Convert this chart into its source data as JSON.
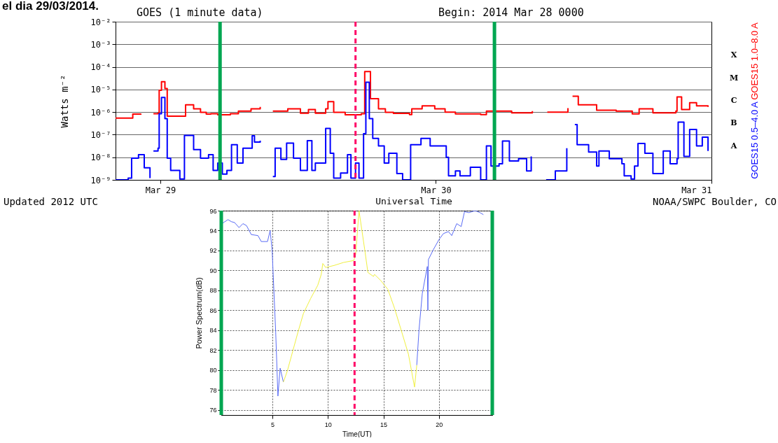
{
  "chart_data": [
    {
      "type": "step",
      "title": "GOES (1 minute data)",
      "subtitle": "Begin: 2014 Mar 28 0000",
      "xlabel": "Universal Time",
      "ylabel": "Watts m⁻²",
      "annotations": [
        "el dia 29/03/2014.",
        "Updated 2012 UTC",
        "NOAA/SWPC Boulder, CO",
        "X",
        "M",
        "C",
        "B",
        "A"
      ],
      "xlim": [
        "2014-03-28T20:06",
        "2014-03-31T00:00"
      ],
      "xticks": [
        {
          "value": "2014-03-29",
          "label": "Mar 29"
        },
        {
          "value": "2014-03-30",
          "label": "Mar 30"
        },
        {
          "value": "2014-03-31",
          "label": "Mar 31"
        }
      ],
      "ylim": [
        1e-09,
        0.01
      ],
      "yticks": [
        {
          "value": 1e-09,
          "label": "10⁻⁹"
        },
        {
          "value": 1e-08,
          "label": "10⁻⁸"
        },
        {
          "value": 1e-07,
          "label": "10⁻⁷"
        },
        {
          "value": 1e-06,
          "label": "10⁻⁶"
        },
        {
          "value": 1e-05,
          "label": "10⁻⁵"
        },
        {
          "value": 0.0001,
          "label": "10⁻⁴"
        },
        {
          "value": 0.001,
          "label": "10⁻³"
        },
        {
          "value": 0.01,
          "label": "10⁻²"
        }
      ],
      "log": true,
      "grid": "y",
      "legend": "right",
      "ref_lines": [
        {
          "axis": "x",
          "value": "2014-03-29T05:12",
          "color": "#00a651"
        },
        {
          "axis": "x",
          "value": "2014-03-30T05:06",
          "color": "#00a651"
        },
        {
          "axis": "x",
          "value": "2014-03-29T17:00",
          "color": "#ff0066",
          "line_style": "dashed"
        }
      ],
      "series": [
        {
          "name": "GOES15 1.0–8.0 A",
          "color": "#ff0000",
          "x": [
            "2014-03-28T20:06",
            "2014-03-28T21:36",
            "2014-03-28T22:18",
            "2014-03-28T22:42",
            "2014-03-28T23:24",
            "2014-03-28T23:48",
            "2014-03-28T23:54",
            "2014-03-29T00:06",
            "2014-03-29T00:24",
            "2014-03-29T00:36",
            "2014-03-29T02:06",
            "2014-03-29T02:12",
            "2014-03-29T02:54",
            "2014-03-29T03:30",
            "2014-03-29T04:00",
            "2014-03-29T04:24",
            "2014-03-29T05:00",
            "2014-03-29T06:06",
            "2014-03-29T06:48",
            "2014-03-29T07:54",
            "2014-03-29T08:42",
            "2014-03-29T09:12",
            "2014-03-29T09:48",
            "2014-03-29T11:06",
            "2014-03-29T12:12",
            "2014-03-29T12:54",
            "2014-03-29T13:30",
            "2014-03-29T14:24",
            "2014-03-29T14:36",
            "2014-03-29T15:06",
            "2014-03-29T16:06",
            "2014-03-29T17:30",
            "2014-03-29T17:48",
            "2014-03-29T18:00",
            "2014-03-29T18:18",
            "2014-03-29T19:00",
            "2014-03-29T19:36",
            "2014-03-29T20:18",
            "2014-03-29T21:42",
            "2014-03-29T21:54",
            "2014-03-29T22:48",
            "2014-03-29T23:54",
            "2014-03-30T00:48",
            "2014-03-30T01:42",
            "2014-03-30T03:54",
            "2014-03-30T04:24",
            "2014-03-30T05:42",
            "2014-03-30T06:36",
            "2014-03-30T08:24",
            "2014-03-30T09:00",
            "2014-03-30T09:42",
            "2014-03-30T11:30",
            "2014-03-30T11:42",
            "2014-03-30T11:54",
            "2014-03-30T12:24",
            "2014-03-30T14:00",
            "2014-03-30T15:42",
            "2014-03-30T17:06",
            "2014-03-30T17:42",
            "2014-03-30T18:54",
            "2014-03-30T20:54",
            "2014-03-30T21:00",
            "2014-03-30T21:24",
            "2014-03-30T22:06",
            "2014-03-30T22:42",
            "2014-03-30T23:42"
          ],
          "values": [
            5.4e-07,
            8.1e-07,
            7.6e-07,
            null,
            8.5e-07,
            8.9e-07,
            9.3e-06,
            2.2e-05,
            1.1e-05,
            6.6e-07,
            6.6e-07,
            2.1e-06,
            1.4e-06,
            9.8e-07,
            8.1e-07,
            8.5e-07,
            7.6e-07,
            8.5e-07,
            1.1e-06,
            1.4e-06,
            1.7e-06,
            null,
            1.1e-06,
            1.4e-06,
            8.9e-07,
            1.3e-06,
            8.9e-07,
            1.4e-06,
            2.9e-06,
            9.8e-07,
            7.6e-07,
            8.5e-07,
            6.2e-05,
            6.2e-05,
            3.9e-06,
            1.4e-06,
            9.8e-07,
            8.7e-07,
            7.8e-07,
            1.4e-06,
            1.9e-06,
            1.4e-06,
            1e-06,
            8.3e-07,
            7.8e-07,
            1.1e-06,
            1.1e-06,
            9.3e-07,
            1.1e-06,
            null,
            1e-06,
            1.5e-06,
            null,
            5e-06,
            2.1e-06,
            1.2e-06,
            1.1e-06,
            8.3e-07,
            1.4e-06,
            9.3e-07,
            1.1e-06,
            4.7e-06,
            1.3e-06,
            2.6e-06,
            1.9e-06,
            1.7e-06
          ]
        },
        {
          "name": "GOES15 0.5–4.0 A",
          "color": "#0000ff",
          "x": [
            "2014-03-28T20:06",
            "2014-03-28T21:12",
            "2014-03-28T21:30",
            "2014-03-28T22:06",
            "2014-03-28T22:36",
            "2014-03-28T23:06",
            "2014-03-28T23:15",
            "2014-03-28T23:24",
            "2014-03-28T23:48",
            "2014-03-28T23:54",
            "2014-03-29T00:06",
            "2014-03-29T00:24",
            "2014-03-29T00:36",
            "2014-03-29T00:54",
            "2014-03-29T01:42",
            "2014-03-29T02:06",
            "2014-03-29T02:54",
            "2014-03-29T03:30",
            "2014-03-29T04:12",
            "2014-03-29T04:36",
            "2014-03-29T05:00",
            "2014-03-29T05:24",
            "2014-03-29T05:48",
            "2014-03-29T06:12",
            "2014-03-29T06:42",
            "2014-03-29T07:12",
            "2014-03-29T08:00",
            "2014-03-29T08:12",
            "2014-03-29T08:42",
            "2014-03-29T09:12",
            "2014-03-29T09:48",
            "2014-03-29T10:00",
            "2014-03-29T10:30",
            "2014-03-29T11:00",
            "2014-03-29T11:36",
            "2014-03-29T12:12",
            "2014-03-29T12:48",
            "2014-03-29T13:12",
            "2014-03-29T13:30",
            "2014-03-29T14:24",
            "2014-03-29T14:48",
            "2014-03-29T15:06",
            "2014-03-29T15:42",
            "2014-03-29T16:18",
            "2014-03-29T16:36",
            "2014-03-29T17:00",
            "2014-03-29T17:18",
            "2014-03-29T17:42",
            "2014-03-29T17:54",
            "2014-03-29T18:12",
            "2014-03-29T18:30",
            "2014-03-29T19:00",
            "2014-03-29T19:30",
            "2014-03-29T19:54",
            "2014-03-29T20:36",
            "2014-03-29T21:06",
            "2014-03-29T21:48",
            "2014-03-29T22:42",
            "2014-03-29T23:30",
            "2014-03-30T00:00",
            "2014-03-30T00:54",
            "2014-03-30T01:06",
            "2014-03-30T01:42",
            "2014-03-30T02:06",
            "2014-03-30T03:00",
            "2014-03-30T03:54",
            "2014-03-30T04:24",
            "2014-03-30T04:48",
            "2014-03-30T05:30",
            "2014-03-30T05:48",
            "2014-03-30T06:24",
            "2014-03-30T07:12",
            "2014-03-30T07:54",
            "2014-03-30T08:18",
            "2014-03-30T09:00",
            "2014-03-30T09:36",
            "2014-03-30T10:24",
            "2014-03-30T11:24",
            "2014-03-30T11:42",
            "2014-03-30T12:06",
            "2014-03-30T12:18",
            "2014-03-30T13:18",
            "2014-03-30T14:00",
            "2014-03-30T14:12",
            "2014-03-30T15:06",
            "2014-03-30T16:12",
            "2014-03-30T16:24",
            "2014-03-30T17:00",
            "2014-03-30T17:18",
            "2014-03-30T17:36",
            "2014-03-30T18:12",
            "2014-03-30T18:54",
            "2014-03-30T19:48",
            "2014-03-30T20:24",
            "2014-03-30T21:00",
            "2014-03-30T21:06",
            "2014-03-30T21:36",
            "2014-03-30T22:06",
            "2014-03-30T22:42",
            "2014-03-30T23:12",
            "2014-03-30T23:42"
          ],
          "values": [
            1e-09,
            1.2e-09,
            9.1e-09,
            1.3e-08,
            3.4e-09,
            1.2e-09,
            null,
            1.9e-08,
            2.5e-08,
            8.5e-07,
            4.4e-06,
            5.1e-07,
            9.1e-09,
            2.6e-09,
            1.1e-09,
            9.3e-08,
            2.2e-08,
            9.1e-09,
            1.3e-08,
            2.6e-09,
            5.5e-09,
            1.8e-09,
            2.6e-09,
            3.6e-08,
            5.5e-09,
            2.5e-08,
            8.9e-08,
            4.7e-08,
            5.4e-08,
            null,
            1.4e-09,
            2.5e-08,
            8.1e-09,
            4.2e-08,
            9.1e-09,
            2.6e-09,
            5.4e-08,
            2.6e-09,
            5.5e-09,
            1.9e-07,
            1.5e-08,
            1.2e-09,
            2e-09,
            1.3e-08,
            1.2e-09,
            5.5e-09,
            1.2e-09,
            1.1e-07,
            2.1e-05,
            5.1e-07,
            6.9e-08,
            3.2e-08,
            5.5e-09,
            1.5e-08,
            1.9e-09,
            1e-09,
            3.6e-08,
            6.8e-08,
            3.2e-08,
            3.2e-08,
            1e-08,
            1.5e-09,
            2.5e-09,
            1.5e-09,
            3.6e-09,
            1e-09,
            3.2e-08,
            4.1e-09,
            5.2e-09,
            5.2e-08,
            6.8e-09,
            8.7e-09,
            2.5e-09,
            1.1e-08,
            null,
            1e-09,
            2.5e-09,
            2.5e-08,
            null,
            2.8e-07,
            3.6e-08,
            1.7e-08,
            4.1e-09,
            1.9e-08,
            8.7e-09,
            5.2e-09,
            1.5e-09,
            1.1e-09,
            4.1e-09,
            4.1e-08,
            1.5e-08,
            1.9e-09,
            1.9e-08,
            5.2e-09,
            8.7e-09,
            3.6e-07,
            1.1e-08,
            1.7e-07,
            3.2e-08,
            7.8e-08,
            1.9e-08
          ]
        }
      ]
    },
    {
      "type": "line",
      "xlabel": "Time(UT)",
      "ylabel": "Power Spectrum(dB)",
      "xlim": [
        0.4,
        24.8
      ],
      "xticks": [
        5,
        10,
        15,
        20
      ],
      "ylim": [
        75.5,
        96
      ],
      "yticks": [
        76,
        78,
        80,
        82,
        84,
        86,
        88,
        90,
        92,
        94,
        96
      ],
      "grid": true,
      "ref_lines": [
        {
          "axis": "x",
          "value": 0.4,
          "color": "#00a651"
        },
        {
          "axis": "x",
          "value": 24.8,
          "color": "#00a651"
        },
        {
          "axis": "x",
          "value": 12.4,
          "color": "#ff0066",
          "line_style": "dashed"
        }
      ],
      "series": [
        {
          "color": "#5a6cf5",
          "x": [
            0.46,
            1.0,
            1.3,
            1.6,
            2.0,
            2.35,
            2.67,
            3.1,
            3.7,
            4.0,
            4.56,
            4.8,
            4.98,
            5.08,
            5.3,
            5.5,
            5.7,
            5.99,
            12.0,
            18.0,
            18.2,
            18.5,
            18.95,
            19.0,
            19.05,
            19.5,
            20.0,
            20.4,
            20.85,
            21.15,
            21.6,
            22.0,
            22.3,
            22.7,
            23.25,
            23.7,
            24.0
          ],
          "values": [
            94.7,
            95.1,
            94.9,
            94.8,
            94.3,
            94.7,
            94.5,
            93.6,
            93.5,
            92.9,
            92.9,
            94.0,
            92.0,
            89.4,
            83.8,
            77.4,
            80.2,
            78.8,
            null,
            80.5,
            84.0,
            87.7,
            90.4,
            86.0,
            91.1,
            92.1,
            93.1,
            93.7,
            93.9,
            93.5,
            94.7,
            94.4,
            95.9,
            95.8,
            96.0,
            95.8,
            95.6
          ]
        },
        {
          "color": "#f0f040",
          "x": [
            5.99,
            6.34,
            6.76,
            7.3,
            7.8,
            8.45,
            9.08,
            9.4,
            9.54,
            9.8,
            10.55,
            11.4,
            12.33,
            12.5,
            12.8,
            13.3,
            13.6,
            14.1,
            14.2,
            14.75,
            15.4,
            16.0,
            16.6,
            17.25,
            17.6,
            17.8,
            18.0
          ],
          "values": [
            78.8,
            79.9,
            81.6,
            83.8,
            85.7,
            87.2,
            88.5,
            89.6,
            90.7,
            90.3,
            90.5,
            90.8,
            91.0,
            91.6,
            96.0,
            92.2,
            89.8,
            89.4,
            89.6,
            89.0,
            88.1,
            86.2,
            84.0,
            81.6,
            79.5,
            78.3,
            80.5
          ]
        }
      ]
    }
  ]
}
